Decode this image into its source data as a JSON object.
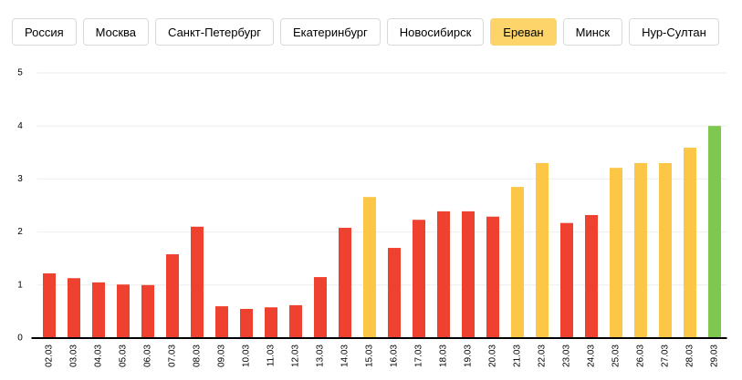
{
  "tabs": {
    "items": [
      "Россия",
      "Москва",
      "Санкт-Петербург",
      "Екатеринбург",
      "Новосибирск",
      "Ереван",
      "Минск",
      "Нур-Султан"
    ],
    "active": 5
  },
  "chart_data": {
    "type": "bar",
    "categories": [
      "02.03",
      "03.03",
      "04.03",
      "05.03",
      "06.03",
      "07.03",
      "08.03",
      "09.03",
      "10.03",
      "11.03",
      "12.03",
      "13.03",
      "14.03",
      "15.03",
      "16.03",
      "17.03",
      "18.03",
      "19.03",
      "20.03",
      "21.03",
      "22.03",
      "23.03",
      "24.03",
      "25.03",
      "26.03",
      "27.03",
      "28.03",
      "29.03"
    ],
    "values": [
      1.22,
      1.13,
      1.05,
      1.01,
      1.0,
      1.58,
      2.1,
      0.6,
      0.55,
      0.58,
      0.62,
      1.15,
      2.08,
      2.66,
      1.7,
      2.23,
      2.39,
      2.39,
      2.29,
      2.85,
      3.3,
      2.17,
      2.32,
      3.21,
      3.3,
      3.3,
      3.59,
      4.0
    ],
    "colors": [
      "#ee4130",
      "#ee4130",
      "#ee4130",
      "#ee4130",
      "#ee4130",
      "#ee4130",
      "#ee4130",
      "#ee4130",
      "#ee4130",
      "#ee4130",
      "#ee4130",
      "#ee4130",
      "#ee4130",
      "#fcc646",
      "#ee4130",
      "#ee4130",
      "#ee4130",
      "#ee4130",
      "#ee4130",
      "#fcc646",
      "#fcc646",
      "#ee4130",
      "#ee4130",
      "#fcc646",
      "#fcc646",
      "#fcc646",
      "#fcc646",
      "#7ec850"
    ],
    "ylim": [
      0,
      5
    ],
    "yticks": [
      0,
      1,
      2,
      3,
      4,
      5
    ],
    "grid": true
  }
}
